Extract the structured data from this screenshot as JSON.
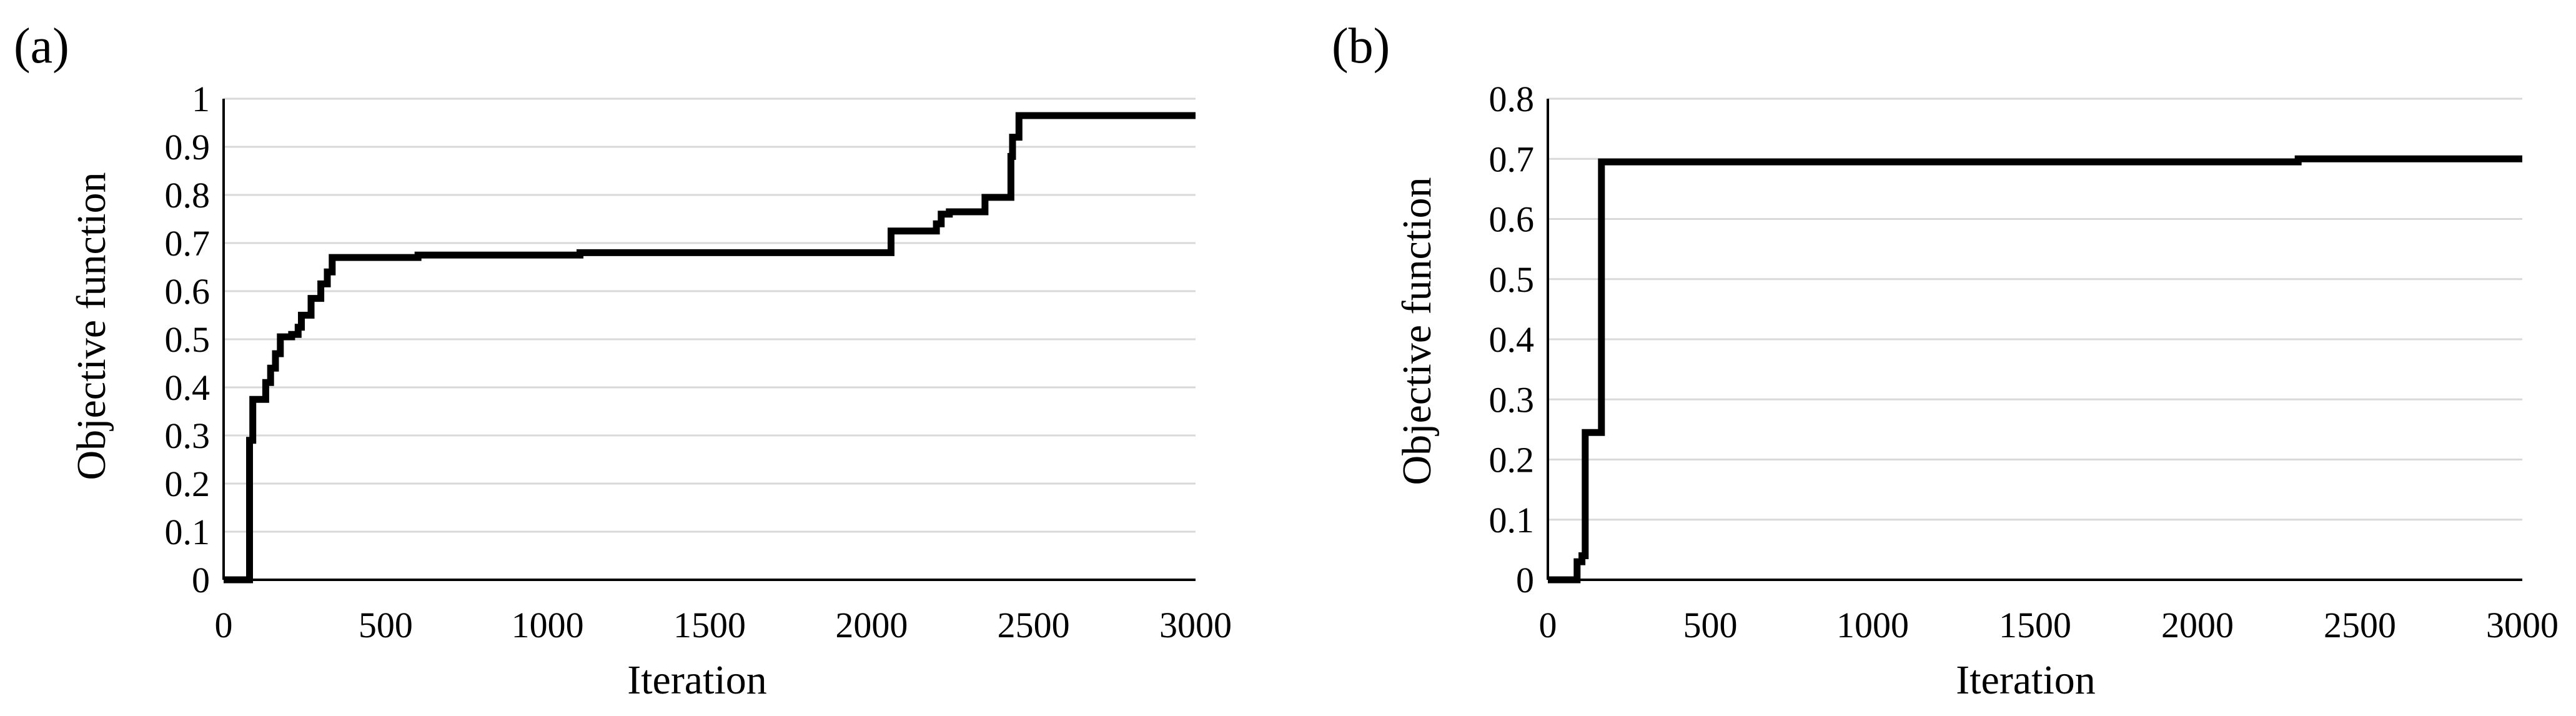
{
  "panels": [
    {
      "label": "(a)"
    },
    {
      "label": "(b)"
    }
  ],
  "colors": {
    "line": "#000000",
    "grid": "#d9d9d9",
    "axis": "#000000",
    "background": "#ffffff"
  },
  "chart_data": [
    {
      "type": "line",
      "panel_label": "(a)",
      "xlabel": "Iteration",
      "ylabel": "Objective function",
      "xlim": [
        0,
        3000
      ],
      "ylim": [
        0,
        1
      ],
      "xticks": [
        0,
        500,
        1000,
        1500,
        2000,
        2500,
        3000
      ],
      "xtick_labels": [
        "0",
        "500",
        "1000",
        "1500",
        "2000",
        "2500",
        "3000"
      ],
      "yticks": [
        0,
        0.1,
        0.2,
        0.3,
        0.4,
        0.5,
        0.6,
        0.7,
        0.8,
        0.9,
        1
      ],
      "ytick_labels": [
        "0",
        "0.1",
        "0.2",
        "0.3",
        "0.4",
        "0.5",
        "0.6",
        "0.7",
        "0.8",
        "0.9",
        "1"
      ],
      "grid": "horizontal",
      "legend": "none",
      "series": [
        {
          "x": [
            0,
            80,
            80,
            90,
            90,
            130,
            130,
            145,
            145,
            160,
            160,
            175,
            175,
            210,
            210,
            230,
            230,
            240,
            240,
            270,
            270,
            300,
            300,
            320,
            320,
            335,
            335,
            600,
            600,
            1100,
            1100,
            2060,
            2060,
            2200,
            2200,
            2215,
            2215,
            2240,
            2240,
            2350,
            2350,
            2430,
            2430,
            2435,
            2435,
            2455,
            2455,
            2490,
            2490,
            3000
          ],
          "y": [
            0,
            0,
            0.29,
            0.29,
            0.375,
            0.375,
            0.41,
            0.41,
            0.44,
            0.44,
            0.47,
            0.47,
            0.505,
            0.505,
            0.51,
            0.51,
            0.525,
            0.525,
            0.55,
            0.55,
            0.585,
            0.585,
            0.615,
            0.615,
            0.64,
            0.64,
            0.67,
            0.67,
            0.675,
            0.675,
            0.68,
            0.68,
            0.725,
            0.725,
            0.74,
            0.74,
            0.76,
            0.76,
            0.765,
            0.765,
            0.795,
            0.795,
            0.88,
            0.88,
            0.92,
            0.92,
            0.965,
            0.965,
            0.965,
            0.965
          ]
        }
      ]
    },
    {
      "type": "line",
      "panel_label": "(b)",
      "xlabel": "Iteration",
      "ylabel": "Objective function",
      "xlim": [
        0,
        3000
      ],
      "ylim": [
        0,
        0.8
      ],
      "xticks": [
        0,
        500,
        1000,
        1500,
        2000,
        2500,
        3000
      ],
      "xtick_labels": [
        "0",
        "500",
        "1000",
        "1500",
        "2000",
        "2500",
        "3000"
      ],
      "yticks": [
        0,
        0.1,
        0.2,
        0.3,
        0.4,
        0.5,
        0.6,
        0.7,
        0.8
      ],
      "ytick_labels": [
        "0",
        "0.1",
        "0.2",
        "0.3",
        "0.4",
        "0.5",
        "0.6",
        "0.7",
        "0.8"
      ],
      "grid": "horizontal",
      "legend": "none",
      "series": [
        {
          "x": [
            0,
            90,
            90,
            105,
            105,
            115,
            115,
            165,
            165,
            2310,
            2310,
            3000
          ],
          "y": [
            0,
            0,
            0.03,
            0.03,
            0.04,
            0.04,
            0.245,
            0.245,
            0.695,
            0.695,
            0.7,
            0.7
          ]
        }
      ]
    }
  ]
}
